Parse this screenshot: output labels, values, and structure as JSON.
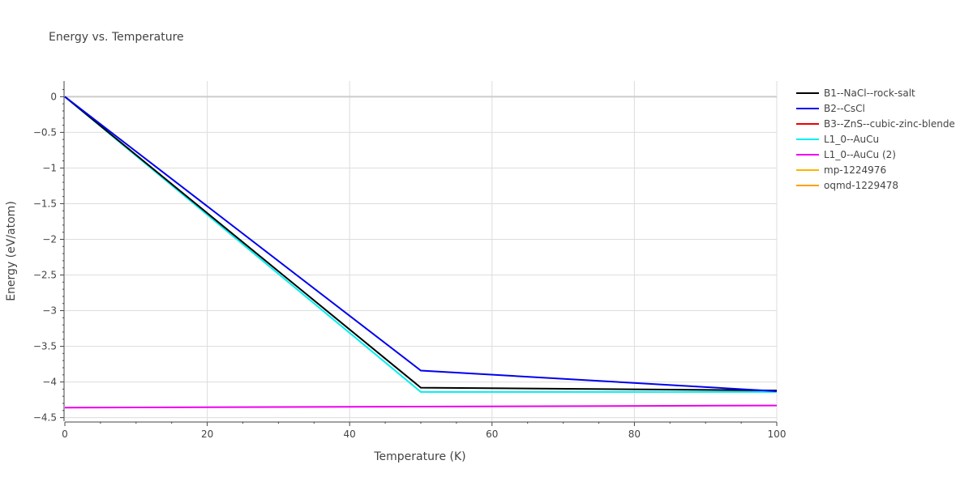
{
  "chart_data": {
    "type": "line",
    "title": "Energy vs. Temperature",
    "xlabel": "Temperature (K)",
    "ylabel": "Energy (eV/atom)",
    "xlim": [
      0,
      100
    ],
    "ylim": [
      -4.55,
      0.22
    ],
    "x_ticks": [
      0,
      20,
      40,
      60,
      80,
      100
    ],
    "y_ticks": [
      0,
      -0.5,
      -1,
      -1.5,
      -2,
      -2.5,
      -3,
      -3.5,
      -4,
      -4.5
    ],
    "y_tick_labels": [
      "0",
      "−0.5",
      "−1",
      "−1.5",
      "−2",
      "−2.5",
      "−3",
      "−3.5",
      "−4",
      "−4.5"
    ],
    "grid": true,
    "legend_position": "right",
    "series": [
      {
        "name": "B1--NaCl--rock-salt",
        "color": "#000000",
        "x": [
          0,
          50,
          100
        ],
        "y": [
          0,
          -4.08,
          -4.12
        ]
      },
      {
        "name": "B2--CsCl",
        "color": "#0000ee",
        "x": [
          0,
          50,
          100
        ],
        "y": [
          0,
          -3.84,
          -4.13
        ]
      },
      {
        "name": "B3--ZnS--cubic-zinc-blende",
        "color": "#ee0000",
        "x": [],
        "y": []
      },
      {
        "name": "L1_0--AuCu",
        "color": "#00eeee",
        "x": [
          0,
          50,
          100
        ],
        "y": [
          0,
          -4.14,
          -4.14
        ]
      },
      {
        "name": "L1_0--AuCu (2)",
        "color": "#ee00ee",
        "x": [
          0,
          100
        ],
        "y": [
          -4.36,
          -4.33
        ]
      },
      {
        "name": "mp-1224976",
        "color": "#ffb300",
        "x": [],
        "y": []
      },
      {
        "name": "oqmd-1229478",
        "color": "#ffa000",
        "x": [],
        "y": []
      }
    ]
  }
}
